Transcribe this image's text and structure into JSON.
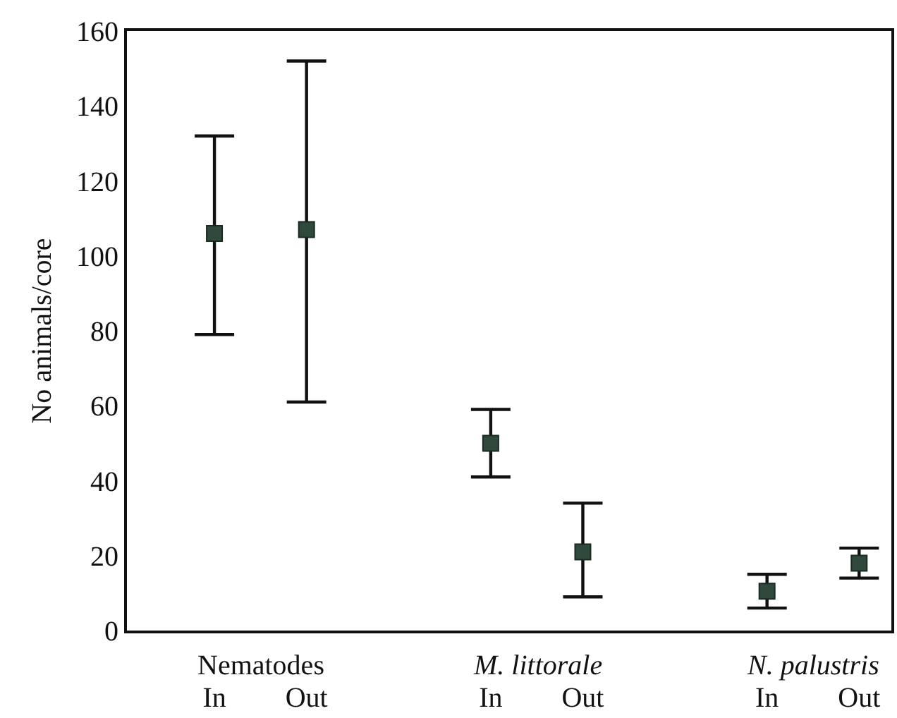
{
  "chart_data": {
    "type": "scatter",
    "ylabel": "No animals/core",
    "categories": [
      "In",
      "Out",
      null,
      "In",
      "Out",
      null,
      "In",
      "Out"
    ],
    "values": [
      106,
      107,
      null,
      50,
      21,
      null,
      10.5,
      18
    ],
    "errors": [
      [
        79,
        132
      ],
      [
        61,
        152
      ],
      null,
      [
        41,
        59
      ],
      [
        9,
        34
      ],
      null,
      [
        6,
        15
      ],
      [
        14,
        22
      ]
    ],
    "color": "#2f4a3c",
    "marker": "square",
    "ylim": [
      0,
      160
    ],
    "yticks": [
      0,
      20,
      40,
      60,
      80,
      100,
      120,
      140,
      160
    ],
    "grid": false,
    "legend": false,
    "annotations": [
      "Nematodes",
      "M. littorale",
      "N. palustris"
    ]
  }
}
